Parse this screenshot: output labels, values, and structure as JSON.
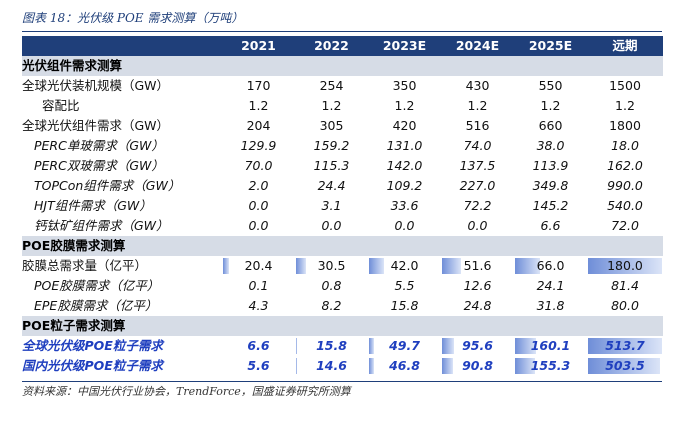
{
  "title": "图表 18：光伏级 POE 需求测算（万吨）",
  "columns": [
    "",
    "2021",
    "2022",
    "2023E",
    "2024E",
    "2025E",
    "远期"
  ],
  "sections": [
    {
      "header": "光伏组件需求测算",
      "rows": [
        {
          "label": "全球光伏装机规模（GW）",
          "values": [
            "170",
            "254",
            "350",
            "430",
            "550",
            "1500"
          ],
          "indent": 0,
          "italic": false
        },
        {
          "label": "容配比",
          "values": [
            "1.2",
            "1.2",
            "1.2",
            "1.2",
            "1.2",
            "1.2"
          ],
          "indent": 1,
          "italic": false
        },
        {
          "label": "全球光伏组件需求（GW）",
          "values": [
            "204",
            "305",
            "420",
            "516",
            "660",
            "1800"
          ],
          "indent": 0,
          "italic": false
        },
        {
          "label": "PERC单玻需求（GW）",
          "values": [
            "129.9",
            "159.2",
            "131.0",
            "74.0",
            "38.0",
            "18.0"
          ],
          "indent": 2,
          "italic": true
        },
        {
          "label": "PERC双玻需求（GW）",
          "values": [
            "70.0",
            "115.3",
            "142.0",
            "137.5",
            "113.9",
            "162.0"
          ],
          "indent": 2,
          "italic": true
        },
        {
          "label": "TOPCon组件需求（GW）",
          "values": [
            "2.0",
            "24.4",
            "109.2",
            "227.0",
            "349.8",
            "990.0"
          ],
          "indent": 2,
          "italic": true
        },
        {
          "label": "HJT组件需求（GW）",
          "values": [
            "0.0",
            "3.1",
            "33.6",
            "72.2",
            "145.2",
            "540.0"
          ],
          "indent": 2,
          "italic": true
        },
        {
          "label": "钙钛矿组件需求（GW）",
          "values": [
            "0.0",
            "0.0",
            "0.0",
            "0.0",
            "6.6",
            "72.0"
          ],
          "indent": 2,
          "italic": true
        }
      ]
    },
    {
      "header": "POE胶膜需求测算",
      "rows": [
        {
          "label": "胶膜总需求量（亿平）",
          "values": [
            "20.4",
            "30.5",
            "42.0",
            "51.6",
            "66.0",
            "180.0"
          ],
          "indent": 0,
          "italic": false,
          "bars": [
            0.113,
            0.169,
            0.233,
            0.287,
            0.367,
            1.0
          ]
        },
        {
          "label": "POE胶膜需求（亿平）",
          "values": [
            "0.1",
            "0.8",
            "5.5",
            "12.6",
            "24.1",
            "81.4"
          ],
          "indent": 2,
          "italic": true
        },
        {
          "label": "EPE胶膜需求（亿平）",
          "values": [
            "4.3",
            "8.2",
            "15.8",
            "24.8",
            "31.8",
            "80.0"
          ],
          "indent": 2,
          "italic": true
        }
      ]
    },
    {
      "header": "POE粒子需求测算",
      "rows": [
        {
          "label": "全球光伏级POE粒子需求",
          "values": [
            "6.6",
            "15.8",
            "49.7",
            "95.6",
            "160.1",
            "513.7"
          ],
          "indent": 0,
          "italic": true,
          "blue": true,
          "bars": [
            0.013,
            0.031,
            0.097,
            0.186,
            0.312,
            1.0
          ]
        },
        {
          "label": "国内光伏级POE粒子需求",
          "values": [
            "5.6",
            "14.6",
            "46.8",
            "90.8",
            "155.3",
            "503.5"
          ],
          "indent": 0,
          "italic": true,
          "blue": true,
          "bars": [
            0.011,
            0.029,
            0.093,
            0.18,
            0.308,
            0.98
          ]
        }
      ]
    }
  ],
  "source": "资料来源：中国光伏行业协会，TrendForce，国盛证券研究所测算",
  "colors": {
    "header_bg": "#1f3f7a",
    "section_bg": "#d6dce6",
    "highlight_text": "#1f3fbf",
    "bar_fill": "#6f8ed8"
  }
}
